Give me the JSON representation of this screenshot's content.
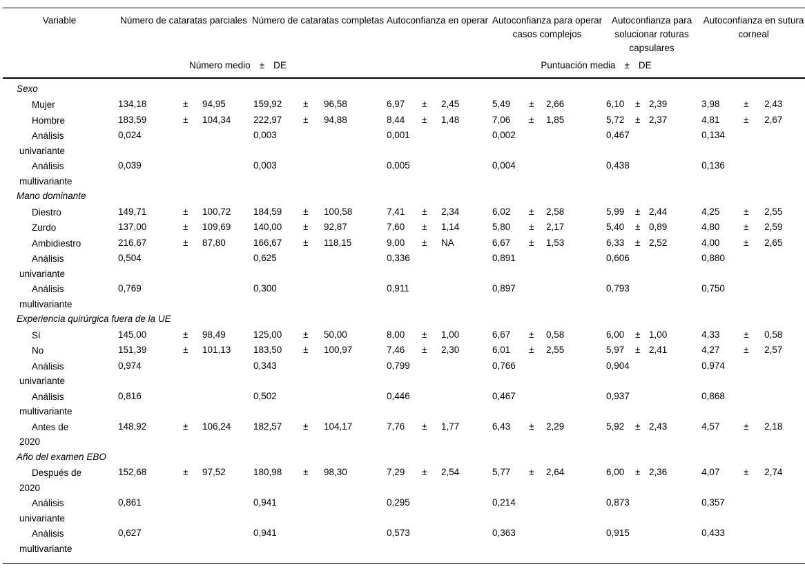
{
  "table": {
    "pm_symbol": "±",
    "columns": [
      "Variable",
      "Número de cataratas parciales",
      "Número de cataratas completas",
      "Autoconfianza en operar",
      "Autoconfianza para operar casos complejos",
      "Autoconfianza para solucionar roturas capsulares",
      "Autoconfianza en sutura corneal"
    ],
    "subheader_left": {
      "text": "Número medio",
      "pm": "±",
      "unit": "DE"
    },
    "subheader_right": {
      "text": "Puntuación media",
      "pm": "±",
      "unit": "DE"
    },
    "sections": [
      {
        "title": "Sexo",
        "rows": [
          {
            "label_lines": [
              "Mujer"
            ],
            "cells": [
              [
                "134,18",
                "94,95"
              ],
              [
                "159,92",
                "96,58"
              ],
              [
                "6,97",
                "2,45"
              ],
              [
                "5,49",
                "2,66"
              ],
              [
                "6,10",
                "2,39"
              ],
              [
                "3,98",
                "2,43"
              ]
            ]
          },
          {
            "label_lines": [
              "Hombre"
            ],
            "cells": [
              [
                "183,59",
                "104,34"
              ],
              [
                "222,97",
                "94,88"
              ],
              [
                "8,44",
                "1,48"
              ],
              [
                "7,06",
                "1,85"
              ],
              [
                "5,72",
                "2,37"
              ],
              [
                "4,81",
                "2,67"
              ]
            ]
          },
          {
            "label_lines": [
              "Análisis",
              "univariante"
            ],
            "cells": [
              [
                "0,024"
              ],
              [
                "0,003"
              ],
              [
                "0,001"
              ],
              [
                "0,002"
              ],
              [
                "0,467"
              ],
              [
                "0,134"
              ]
            ]
          },
          {
            "label_lines": [
              "Análisis",
              "multivariante"
            ],
            "cells": [
              [
                "0,039"
              ],
              [
                "0,003"
              ],
              [
                "0,005"
              ],
              [
                "0,004"
              ],
              [
                "0,438"
              ],
              [
                "0,136"
              ]
            ]
          }
        ]
      },
      {
        "title": "Mano dominante",
        "rows": [
          {
            "label_lines": [
              "Diestro"
            ],
            "cells": [
              [
                "149,71",
                "100,72"
              ],
              [
                "184,59",
                "100,58"
              ],
              [
                "7,41",
                "2,34"
              ],
              [
                "6,02",
                "2,58"
              ],
              [
                "5,99",
                "2,44"
              ],
              [
                "4,25",
                "2,55"
              ]
            ]
          },
          {
            "label_lines": [
              "Zurdo"
            ],
            "cells": [
              [
                "137,00",
                "109,69"
              ],
              [
                "140,00",
                "92,87"
              ],
              [
                "7,60",
                "1,14"
              ],
              [
                "5,80",
                "2,17"
              ],
              [
                "5,40",
                "0,89"
              ],
              [
                "4,80",
                "2,59"
              ]
            ]
          },
          {
            "label_lines": [
              "Ambidiestro"
            ],
            "cells": [
              [
                "216,67",
                "87,80"
              ],
              [
                "166,67",
                "118,15"
              ],
              [
                "9,00",
                "NA"
              ],
              [
                "6,67",
                "1,53"
              ],
              [
                "6,33",
                "2,52"
              ],
              [
                "4,00",
                "2,65"
              ]
            ]
          },
          {
            "label_lines": [
              "Análisis",
              "univariante"
            ],
            "cells": [
              [
                "0,504"
              ],
              [
                "0,625"
              ],
              [
                "0,336"
              ],
              [
                "0,891"
              ],
              [
                "0,606"
              ],
              [
                "0,880"
              ]
            ]
          },
          {
            "label_lines": [
              "Análisis",
              "multivariante"
            ],
            "cells": [
              [
                "0,769"
              ],
              [
                "0,300"
              ],
              [
                "0,911"
              ],
              [
                "0,897"
              ],
              [
                "0,793"
              ],
              [
                "0,750"
              ]
            ]
          }
        ]
      },
      {
        "title": "Experiencia quirúrgica fuera de la UE",
        "rows": [
          {
            "label_lines": [
              "Sí"
            ],
            "cells": [
              [
                "145,00",
                "98,49"
              ],
              [
                "125,00",
                "50,00"
              ],
              [
                "8,00",
                "1,00"
              ],
              [
                "6,67",
                "0,58"
              ],
              [
                "6,00",
                "1,00"
              ],
              [
                "4,33",
                "0,58"
              ]
            ]
          },
          {
            "label_lines": [
              "No"
            ],
            "cells": [
              [
                "151,39",
                "101,13"
              ],
              [
                "183,50",
                "100,97"
              ],
              [
                "7,46",
                "2,30"
              ],
              [
                "6,01",
                "2,55"
              ],
              [
                "5,97",
                "2,41"
              ],
              [
                "4,27",
                "2,57"
              ]
            ]
          },
          {
            "label_lines": [
              "Análisis",
              "univariante"
            ],
            "cells": [
              [
                "0,974"
              ],
              [
                "0,343"
              ],
              [
                "0,799"
              ],
              [
                "0,766"
              ],
              [
                "0,904"
              ],
              [
                "0,974"
              ]
            ]
          },
          {
            "label_lines": [
              "Análisis",
              "multivariante"
            ],
            "cells": [
              [
                "0,816"
              ],
              [
                "0,502"
              ],
              [
                "0,446"
              ],
              [
                "0,467"
              ],
              [
                "0,937"
              ],
              [
                "0,868"
              ]
            ]
          },
          {
            "label_lines": [
              "Antes de",
              "2020"
            ],
            "cells": [
              [
                "148,92",
                "106,24"
              ],
              [
                "182,57",
                "104,17"
              ],
              [
                "7,76",
                "1,77"
              ],
              [
                "6,43",
                "2,29"
              ],
              [
                "5,92",
                "2,43"
              ],
              [
                "4,57",
                "2,18"
              ]
            ]
          }
        ]
      },
      {
        "title": "Año del examen EBO",
        "rows": [
          {
            "label_lines": [
              "Después de",
              "2020"
            ],
            "cells": [
              [
                "152,68",
                "97,52"
              ],
              [
                "180,98",
                "98,30"
              ],
              [
                "7,29",
                "2,54"
              ],
              [
                "5,77",
                "2,64"
              ],
              [
                "6,00",
                "2,36"
              ],
              [
                "4,07",
                "2,74"
              ]
            ]
          },
          {
            "label_lines": [
              "Análisis",
              "univariante"
            ],
            "cells": [
              [
                "0,861"
              ],
              [
                "0,941"
              ],
              [
                "0,295"
              ],
              [
                "0,214"
              ],
              [
                "0,873"
              ],
              [
                "0,357"
              ]
            ]
          },
          {
            "label_lines": [
              "Análisis",
              "multivariante"
            ],
            "cells": [
              [
                "0,627"
              ],
              [
                "0,941"
              ],
              [
                "0,573"
              ],
              [
                "0,363"
              ],
              [
                "0,915"
              ],
              [
                "0,433"
              ]
            ]
          }
        ]
      }
    ]
  }
}
